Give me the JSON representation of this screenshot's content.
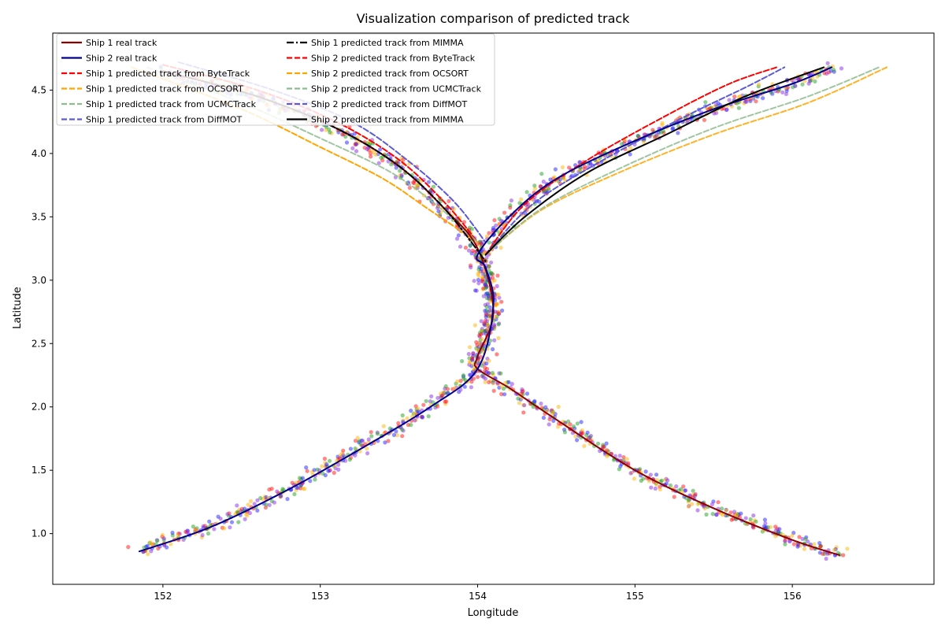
{
  "chart_data": {
    "type": "line",
    "title": "Visualization comparison of predicted track",
    "xlabel": "Longitude",
    "ylabel": "Latitude",
    "xlim": [
      151.3,
      156.9
    ],
    "ylim": [
      0.6,
      4.95
    ],
    "xticks": [
      152,
      153,
      154,
      155,
      156
    ],
    "yticks": [
      1.0,
      1.5,
      2.0,
      2.5,
      3.0,
      3.5,
      4.0,
      4.5
    ],
    "xtick_labels": [
      "152",
      "153",
      "154",
      "155",
      "156"
    ],
    "ytick_labels": [
      "1.0",
      "1.5",
      "2.0",
      "2.5",
      "3.0",
      "3.5",
      "4.0",
      "4.5"
    ],
    "grid": false,
    "legend_position": "top-left",
    "scatter_colors": [
      "#1f9f1f",
      "#2020ff",
      "#ff1010",
      "#ffb400",
      "#8a2be2"
    ],
    "series": [
      {
        "name": "Ship 1 real track",
        "color": "#8b0000",
        "dash": "solid",
        "x": [
          152.0,
          152.6,
          153.1,
          153.5,
          153.8,
          154.0,
          154.1,
          154.0,
          154.0,
          154.2,
          154.5,
          155.0,
          155.5,
          156.0,
          156.3
        ],
        "y": [
          4.65,
          4.45,
          4.2,
          3.9,
          3.55,
          3.25,
          2.75,
          2.4,
          2.3,
          2.15,
          1.9,
          1.5,
          1.2,
          0.95,
          0.83
        ]
      },
      {
        "name": "Ship 2 real track",
        "color": "#00008b",
        "dash": "solid",
        "x": [
          151.85,
          152.3,
          152.8,
          153.3,
          153.7,
          154.0,
          154.1,
          154.05,
          154.0,
          154.2,
          154.5,
          155.0,
          155.5,
          156.0,
          156.25
        ],
        "y": [
          0.86,
          1.05,
          1.35,
          1.7,
          2.0,
          2.3,
          2.8,
          3.1,
          3.2,
          3.5,
          3.8,
          4.1,
          4.35,
          4.55,
          4.68
        ]
      },
      {
        "name": "Ship 1 predicted track from ByteTrack",
        "color": "#ff0000",
        "dash": "dashed",
        "x": [
          152.0,
          152.6,
          153.1,
          153.5,
          153.8,
          154.0
        ],
        "y": [
          4.7,
          4.5,
          4.25,
          3.95,
          3.6,
          3.3
        ]
      },
      {
        "name": "Ship 1 predicted track from OCSORT",
        "color": "#ffa500",
        "dash": "dashed",
        "x": [
          151.8,
          152.5,
          153.0,
          153.4,
          153.7,
          154.0
        ],
        "y": [
          4.68,
          4.35,
          4.05,
          3.8,
          3.55,
          3.3
        ]
      },
      {
        "name": "Ship 1 predicted track from UCMCTrack",
        "color": "#8fbc8f",
        "dash": "dashed",
        "x": [
          151.9,
          152.5,
          153.0,
          153.45,
          153.75,
          154.0
        ],
        "y": [
          4.68,
          4.4,
          4.12,
          3.85,
          3.58,
          3.3
        ]
      },
      {
        "name": "Ship 1 predicted track from DiffMOT",
        "color": "#5b5bd6",
        "dash": "dashed",
        "x": [
          152.1,
          152.7,
          153.2,
          153.55,
          153.85,
          154.05
        ],
        "y": [
          4.72,
          4.5,
          4.25,
          3.95,
          3.62,
          3.3
        ]
      },
      {
        "name": "Ship 1 predicted track from MIMMA",
        "color": "#000000",
        "dash": "dashdot",
        "x": [
          152.0,
          152.6,
          153.1,
          153.5,
          153.8,
          154.05
        ],
        "y": [
          4.65,
          4.45,
          4.2,
          3.9,
          3.55,
          3.15
        ]
      },
      {
        "name": "Ship 2 predicted track from ByteTrack",
        "color": "#ff0000",
        "dash": "dashed",
        "x": [
          154.05,
          154.3,
          154.7,
          155.2,
          155.6,
          155.9
        ],
        "y": [
          3.2,
          3.6,
          3.95,
          4.3,
          4.55,
          4.68
        ]
      },
      {
        "name": "Ship 2 predicted track from OCSORT",
        "color": "#ffa500",
        "dash": "dashed",
        "x": [
          154.05,
          154.4,
          154.9,
          155.5,
          156.1,
          156.6
        ],
        "y": [
          3.2,
          3.55,
          3.85,
          4.15,
          4.4,
          4.68
        ]
      },
      {
        "name": "Ship 2 predicted track from UCMCTrack",
        "color": "#8fbc8f",
        "dash": "dashed",
        "x": [
          154.05,
          154.4,
          154.9,
          155.5,
          156.1,
          156.55
        ],
        "y": [
          3.2,
          3.56,
          3.88,
          4.2,
          4.45,
          4.68
        ]
      },
      {
        "name": "Ship 2 predicted track from DiffMOT",
        "color": "#5b5bd6",
        "dash": "dashed",
        "x": [
          154.05,
          154.35,
          154.8,
          155.3,
          155.7,
          155.95
        ],
        "y": [
          3.2,
          3.6,
          3.95,
          4.28,
          4.52,
          4.68
        ]
      },
      {
        "name": "Ship 2 predicted track from MIMMA",
        "color": "#000000",
        "dash": "solid",
        "x": [
          154.05,
          154.3,
          154.7,
          155.2,
          155.7,
          156.2
        ],
        "y": [
          3.2,
          3.5,
          3.85,
          4.15,
          4.45,
          4.68
        ]
      }
    ]
  }
}
